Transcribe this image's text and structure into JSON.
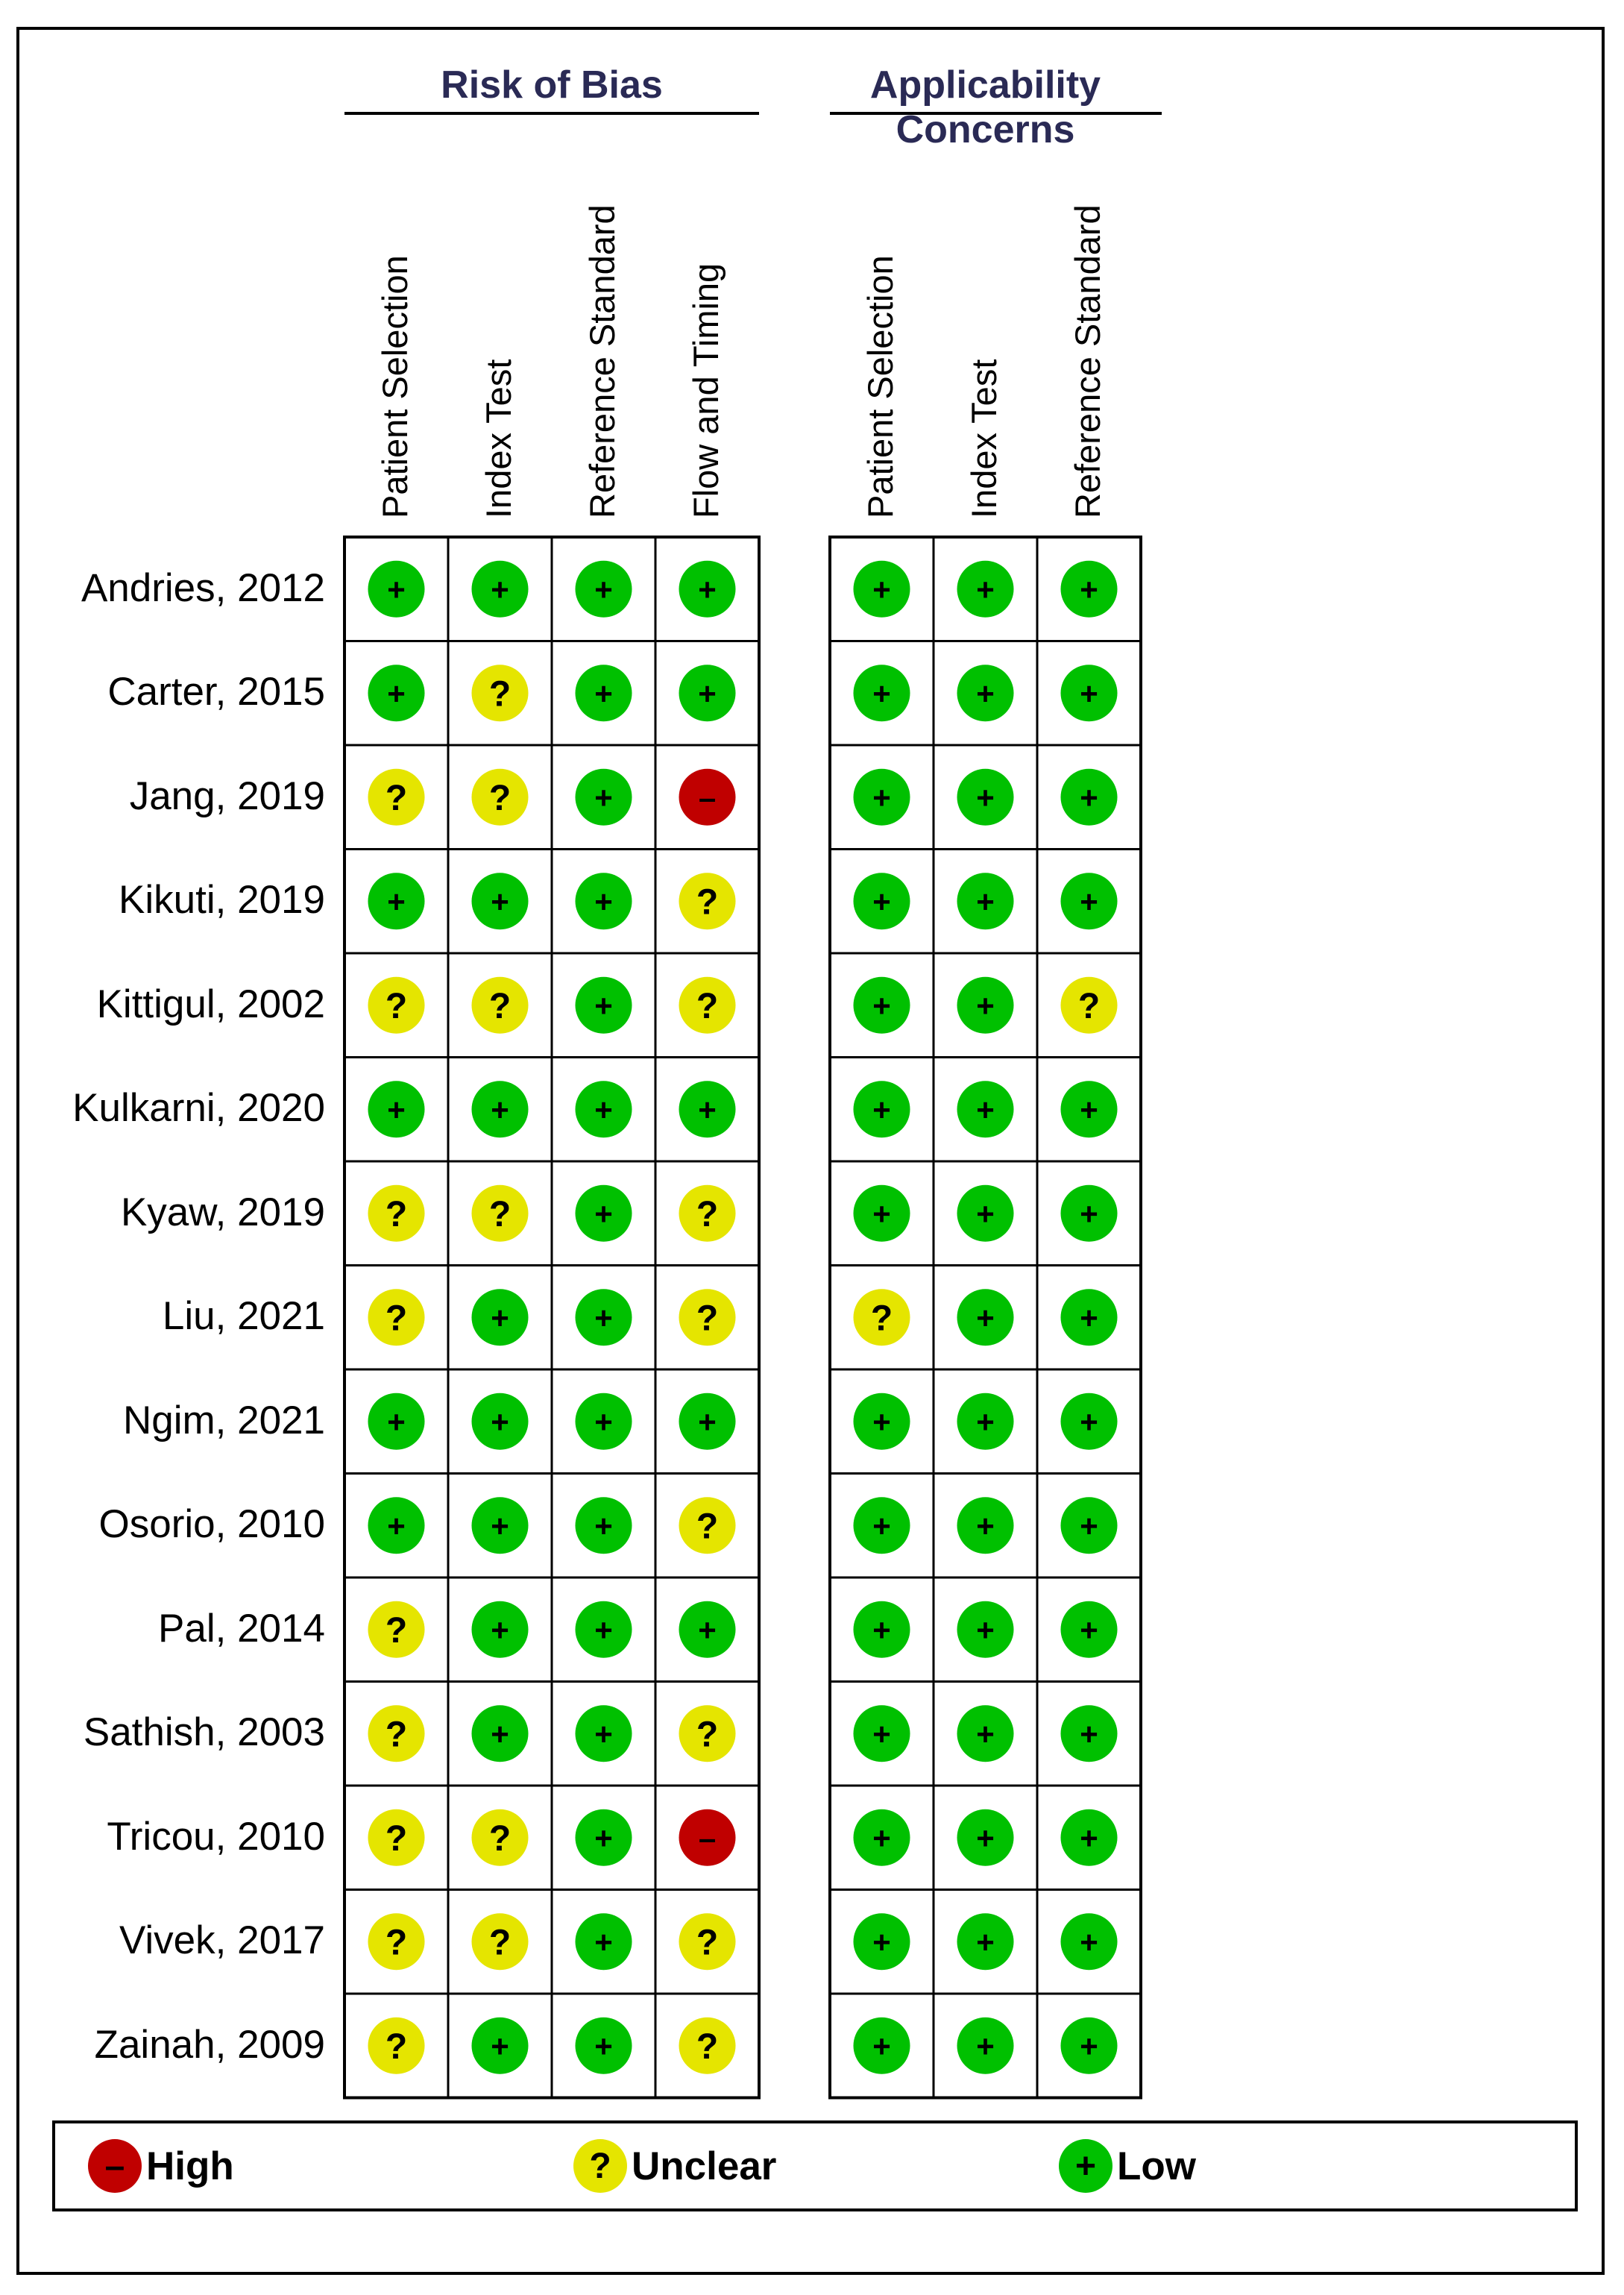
{
  "chart_data": {
    "type": "table",
    "groups": [
      {
        "title": "Risk of Bias",
        "columns": [
          "Patient Selection",
          "Index Test",
          "Reference Standard",
          "Flow and Timing"
        ]
      },
      {
        "title": "Applicability Concerns",
        "columns": [
          "Patient Selection",
          "Index Test",
          "Reference Standard"
        ]
      }
    ],
    "rows": [
      {
        "study": "Andries, 2012",
        "rob": [
          "low",
          "low",
          "low",
          "low"
        ],
        "app": [
          "low",
          "low",
          "low"
        ]
      },
      {
        "study": "Carter, 2015",
        "rob": [
          "low",
          "unclear",
          "low",
          "low"
        ],
        "app": [
          "low",
          "low",
          "low"
        ]
      },
      {
        "study": "Jang, 2019",
        "rob": [
          "unclear",
          "unclear",
          "low",
          "high"
        ],
        "app": [
          "low",
          "low",
          "low"
        ]
      },
      {
        "study": "Kikuti, 2019",
        "rob": [
          "low",
          "low",
          "low",
          "unclear"
        ],
        "app": [
          "low",
          "low",
          "low"
        ]
      },
      {
        "study": "Kittigul, 2002",
        "rob": [
          "unclear",
          "unclear",
          "low",
          "unclear"
        ],
        "app": [
          "low",
          "low",
          "unclear"
        ]
      },
      {
        "study": "Kulkarni, 2020",
        "rob": [
          "low",
          "low",
          "low",
          "low"
        ],
        "app": [
          "low",
          "low",
          "low"
        ]
      },
      {
        "study": "Kyaw, 2019",
        "rob": [
          "unclear",
          "unclear",
          "low",
          "unclear"
        ],
        "app": [
          "low",
          "low",
          "low"
        ]
      },
      {
        "study": "Liu, 2021",
        "rob": [
          "unclear",
          "low",
          "low",
          "unclear"
        ],
        "app": [
          "unclear",
          "low",
          "low"
        ]
      },
      {
        "study": "Ngim, 2021",
        "rob": [
          "low",
          "low",
          "low",
          "low"
        ],
        "app": [
          "low",
          "low",
          "low"
        ]
      },
      {
        "study": "Osorio, 2010",
        "rob": [
          "low",
          "low",
          "low",
          "unclear"
        ],
        "app": [
          "low",
          "low",
          "low"
        ]
      },
      {
        "study": "Pal, 2014",
        "rob": [
          "unclear",
          "low",
          "low",
          "low"
        ],
        "app": [
          "low",
          "low",
          "low"
        ]
      },
      {
        "study": "Sathish, 2003",
        "rob": [
          "unclear",
          "low",
          "low",
          "unclear"
        ],
        "app": [
          "low",
          "low",
          "low"
        ]
      },
      {
        "study": "Tricou, 2010",
        "rob": [
          "unclear",
          "unclear",
          "low",
          "high"
        ],
        "app": [
          "low",
          "low",
          "low"
        ]
      },
      {
        "study": "Vivek, 2017",
        "rob": [
          "unclear",
          "unclear",
          "low",
          "unclear"
        ],
        "app": [
          "low",
          "low",
          "low"
        ]
      },
      {
        "study": "Zainah, 2009",
        "rob": [
          "unclear",
          "low",
          "low",
          "unclear"
        ],
        "app": [
          "low",
          "low",
          "low"
        ]
      }
    ],
    "legend": [
      {
        "key": "high",
        "label": "High"
      },
      {
        "key": "unclear",
        "label": "Unclear"
      },
      {
        "key": "low",
        "label": "Low"
      }
    ],
    "colors": {
      "high": "#c00000",
      "unclear": "#e5e500",
      "low": "#00c000"
    },
    "symbols": {
      "high": "–",
      "unclear": "?",
      "low": "+"
    }
  }
}
